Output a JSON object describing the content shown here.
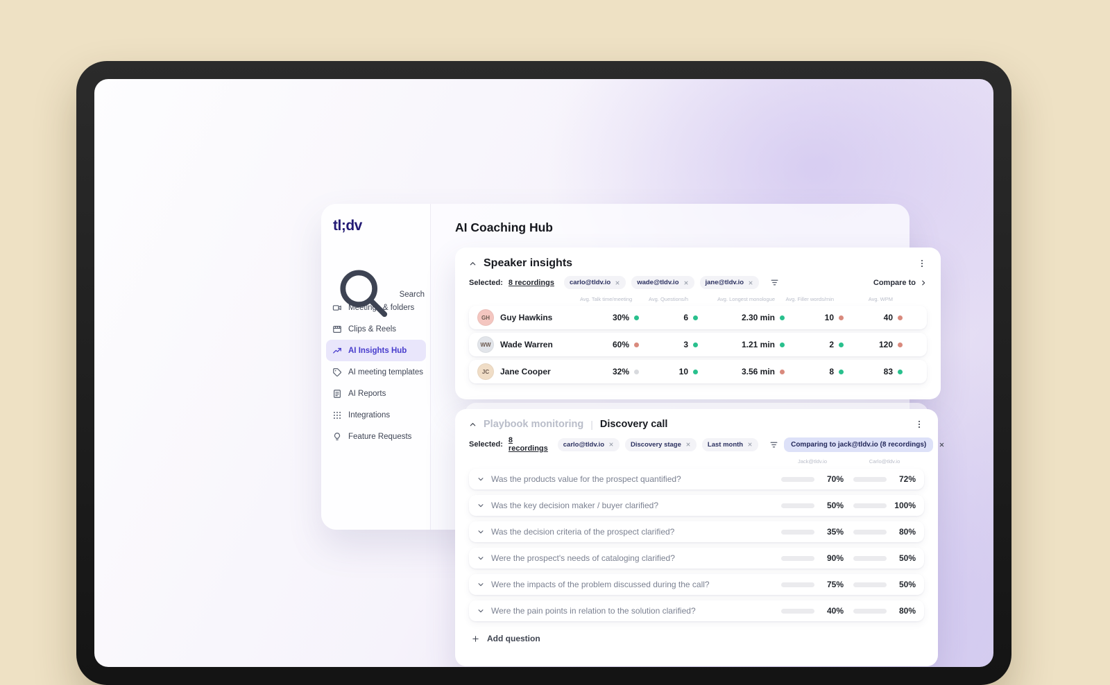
{
  "app": {
    "logo": "tl;dv",
    "page_title": "AI Coaching Hub"
  },
  "sidebar": {
    "search_label": "Search",
    "items": [
      {
        "label": "Meetings & folders",
        "icon": "video-camera-icon",
        "active": false
      },
      {
        "label": "Clips & Reels",
        "icon": "clapperboard-icon",
        "active": false
      },
      {
        "label": "AI Insights Hub",
        "icon": "trend-chart-icon",
        "active": true
      },
      {
        "label": "AI meeting templates",
        "icon": "tag-icon",
        "active": false
      },
      {
        "label": "AI Reports",
        "icon": "report-icon",
        "active": false
      },
      {
        "label": "Integrations",
        "icon": "grid-dots-icon",
        "active": false
      },
      {
        "label": "Feature Requests",
        "icon": "lightbulb-icon",
        "active": false
      }
    ]
  },
  "speaker_insights": {
    "title": "Speaker insights",
    "selected_label": "Selected:",
    "selected_count": "8 recordings",
    "chips": [
      "carlo@tldv.io",
      "wade@tldv.io",
      "jane@tldv.io"
    ],
    "compare_button": "Compare to",
    "columns": [
      "Avg. Talk time/meeting",
      "Avg. Questions/h",
      "Avg. Longest monologue",
      "Avg. Filler words/min",
      "Avg. WPM"
    ],
    "rows": [
      {
        "name": "Guy Hawkins",
        "initials": "GH",
        "avatar_color": "#f4c6c0",
        "metrics": [
          {
            "value": "30%",
            "dot": "green"
          },
          {
            "value": "6",
            "dot": "green"
          },
          {
            "value": "2.30 min",
            "dot": "green"
          },
          {
            "value": "10",
            "dot": "red"
          },
          {
            "value": "40",
            "dot": "red"
          }
        ]
      },
      {
        "name": "Wade Warren",
        "initials": "WW",
        "avatar_color": "#e2e5ea",
        "metrics": [
          {
            "value": "60%",
            "dot": "red"
          },
          {
            "value": "3",
            "dot": "green"
          },
          {
            "value": "1.21 min",
            "dot": "green"
          },
          {
            "value": "2",
            "dot": "green"
          },
          {
            "value": "120",
            "dot": "red"
          }
        ]
      },
      {
        "name": "Jane Cooper",
        "initials": "JC",
        "avatar_color": "#f0ddc6",
        "metrics": [
          {
            "value": "32%",
            "dot": "gray"
          },
          {
            "value": "10",
            "dot": "green"
          },
          {
            "value": "3.56 min",
            "dot": "red"
          },
          {
            "value": "8",
            "dot": "green"
          },
          {
            "value": "83",
            "dot": "green"
          }
        ]
      }
    ]
  },
  "playbook": {
    "title_muted": "Playbook monitoring",
    "separator": "|",
    "title": "Discovery call",
    "selected_label": "Selected:",
    "selected_count": "8 recordings",
    "chips": [
      "carlo@tldv.io",
      "Discovery stage",
      "Last month"
    ],
    "comparing_chip": "Comparing to jack@tldv.io (8 recordings)",
    "columns": [
      "Jack@tldv.io",
      "Carlo@tldv.io"
    ],
    "questions": [
      {
        "text": "Was the products value for the prospect quantified?",
        "bars": [
          {
            "pct": 70,
            "color": "green"
          },
          {
            "pct": 72,
            "color": "green"
          }
        ]
      },
      {
        "text": "Was the key decision maker / buyer clarified?",
        "bars": [
          {
            "pct": 50,
            "color": "salmon"
          },
          {
            "pct": 100,
            "color": "green"
          }
        ]
      },
      {
        "text": "Was the decision criteria of the prospect clarified?",
        "bars": [
          {
            "pct": 35,
            "color": "salmon"
          },
          {
            "pct": 80,
            "color": "green"
          }
        ]
      },
      {
        "text": "Were the prospect's needs of cataloging clarified?",
        "bars": [
          {
            "pct": 90,
            "color": "green"
          },
          {
            "pct": 50,
            "color": "salmon"
          }
        ]
      },
      {
        "text": "Were the impacts of the problem discussed during the call?",
        "bars": [
          {
            "pct": 75,
            "color": "green"
          },
          {
            "pct": 50,
            "color": "salmon"
          }
        ]
      },
      {
        "text": "Were the pain points in relation to the solution clarified?",
        "bars": [
          {
            "pct": 40,
            "color": "salmon"
          },
          {
            "pct": 80,
            "color": "green"
          }
        ]
      }
    ],
    "add_question": "Add question"
  },
  "colors": {
    "positive": "#25c192",
    "negative": "#f2a795",
    "dot_red": "#d98a7d",
    "dot_gray": "#d8dade",
    "accent": "#473ccc",
    "logo": "#231a74",
    "comparing_chip_bg": "#dde1f8",
    "background": "#eee1c4"
  }
}
